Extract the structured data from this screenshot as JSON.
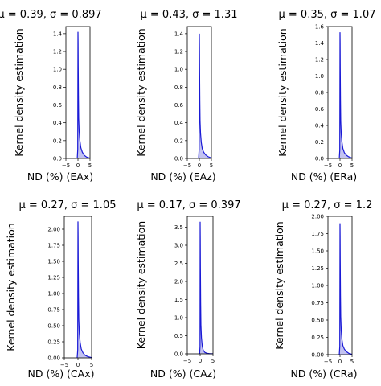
{
  "chart_data": [
    {
      "type": "area",
      "title": "μ = 0.39, σ = 0.897",
      "xlabel": "ND (%) (EAx)",
      "ylabel": "Kernel density estimation",
      "xlim": [
        -5,
        5
      ],
      "ylim": [
        0,
        1.48
      ],
      "xticks": [
        "−5",
        "0",
        "5"
      ],
      "yticks": [
        "0.0",
        "0.2",
        "0.4",
        "0.6",
        "0.8",
        "1.0",
        "1.2",
        "1.4"
      ],
      "ytick_values": [
        0,
        0.2,
        0.4,
        0.6,
        0.8,
        1.0,
        1.2,
        1.4
      ],
      "x": [
        -0.3,
        -0.1,
        0.0,
        0.05,
        0.1,
        0.2,
        0.3,
        0.5,
        0.8,
        1.2,
        1.8,
        2.6,
        3.6,
        5.0
      ],
      "y": [
        0.0,
        0.1,
        1.42,
        1.3,
        1.05,
        0.7,
        0.45,
        0.3,
        0.2,
        0.12,
        0.07,
        0.035,
        0.015,
        0.003
      ]
    },
    {
      "type": "area",
      "title": "μ = 0.43, σ = 1.31",
      "xlabel": "ND (%) (EAz)",
      "ylabel": "Kernel density estimation",
      "xlim": [
        -5,
        5
      ],
      "ylim": [
        0,
        1.48
      ],
      "xticks": [
        "−5",
        "0",
        "5"
      ],
      "yticks": [
        "0.0",
        "0.2",
        "0.4",
        "0.6",
        "0.8",
        "1.0",
        "1.2",
        "1.4"
      ],
      "ytick_values": [
        0,
        0.2,
        0.4,
        0.6,
        0.8,
        1.0,
        1.2,
        1.4
      ],
      "x": [
        -0.3,
        -0.1,
        0.0,
        0.05,
        0.1,
        0.2,
        0.3,
        0.5,
        0.8,
        1.2,
        1.8,
        2.6,
        3.6,
        5.0
      ],
      "y": [
        0.0,
        0.1,
        1.4,
        1.25,
        1.0,
        0.65,
        0.42,
        0.28,
        0.18,
        0.11,
        0.07,
        0.04,
        0.02,
        0.005
      ]
    },
    {
      "type": "area",
      "title": "μ = 0.35, σ = 1.07",
      "xlabel": "ND (%) (ERa)",
      "ylabel": "Kernel density estimation",
      "xlim": [
        -5,
        5
      ],
      "ylim": [
        0,
        1.6
      ],
      "xticks": [
        "−5",
        "0",
        "5"
      ],
      "yticks": [
        "0.0",
        "0.2",
        "0.4",
        "0.6",
        "0.8",
        "1.0",
        "1.2",
        "1.4",
        "1.6"
      ],
      "ytick_values": [
        0,
        0.2,
        0.4,
        0.6,
        0.8,
        1.0,
        1.2,
        1.4,
        1.6
      ],
      "x": [
        -0.3,
        -0.1,
        0.0,
        0.05,
        0.1,
        0.2,
        0.3,
        0.5,
        0.8,
        1.2,
        1.8,
        2.6,
        3.6,
        5.0
      ],
      "y": [
        0.0,
        0.1,
        1.53,
        1.4,
        1.1,
        0.7,
        0.45,
        0.3,
        0.2,
        0.12,
        0.07,
        0.04,
        0.02,
        0.004
      ]
    },
    {
      "type": "area",
      "title": "μ = 0.27, σ = 1.05",
      "xlabel": "ND (%) (CAx)",
      "ylabel": "Kernel density estimation",
      "xlim": [
        -5,
        5
      ],
      "ylim": [
        0,
        2.2
      ],
      "xticks": [
        "−5",
        "0",
        "5"
      ],
      "yticks": [
        "0.00",
        "0.25",
        "0.50",
        "0.75",
        "1.00",
        "1.25",
        "1.50",
        "1.75",
        "2.00"
      ],
      "ytick_values": [
        0,
        0.25,
        0.5,
        0.75,
        1.0,
        1.25,
        1.5,
        1.75,
        2.0
      ],
      "x": [
        -0.3,
        -0.1,
        0.0,
        0.05,
        0.1,
        0.2,
        0.3,
        0.5,
        0.8,
        1.2,
        1.8,
        2.6,
        3.6,
        5.0
      ],
      "y": [
        0.0,
        0.12,
        2.12,
        1.9,
        1.5,
        0.95,
        0.6,
        0.38,
        0.24,
        0.14,
        0.08,
        0.04,
        0.02,
        0.004
      ]
    },
    {
      "type": "area",
      "title": "μ = 0.17, σ = 0.397",
      "xlabel": "ND (%) (CAz)",
      "ylabel": "Kernel density estimation",
      "xlim": [
        -5,
        5
      ],
      "ylim": [
        0,
        3.8
      ],
      "xticks": [
        "−5",
        "0",
        "5"
      ],
      "yticks": [
        "0.0",
        "0.5",
        "1.0",
        "1.5",
        "2.0",
        "2.5",
        "3.0",
        "3.5"
      ],
      "ytick_values": [
        0,
        0.5,
        1.0,
        1.5,
        2.0,
        2.5,
        3.0,
        3.5
      ],
      "x": [
        -0.2,
        -0.05,
        0.0,
        0.05,
        0.1,
        0.2,
        0.3,
        0.5,
        0.8,
        1.2,
        1.8,
        2.6,
        3.6,
        5.0
      ],
      "y": [
        0.0,
        0.2,
        3.65,
        3.2,
        2.4,
        1.4,
        0.8,
        0.45,
        0.22,
        0.1,
        0.04,
        0.015,
        0.005,
        0.001
      ]
    },
    {
      "type": "area",
      "title": "μ = 0.27, σ = 1.2",
      "xlabel": "ND (%) (CRa)",
      "ylabel": "Kernel density estimation",
      "xlim": [
        -5,
        5
      ],
      "ylim": [
        0,
        2.0
      ],
      "xticks": [
        "−5",
        "0",
        "5"
      ],
      "yticks": [
        "0.00",
        "0.25",
        "0.50",
        "0.75",
        "1.00",
        "1.25",
        "1.50",
        "1.75",
        "2.00"
      ],
      "ytick_values": [
        0,
        0.25,
        0.5,
        0.75,
        1.0,
        1.25,
        1.5,
        1.75,
        2.0
      ],
      "x": [
        -0.3,
        -0.1,
        0.0,
        0.05,
        0.1,
        0.2,
        0.3,
        0.5,
        0.8,
        1.2,
        1.8,
        2.6,
        3.6,
        5.0
      ],
      "y": [
        0.0,
        0.12,
        1.9,
        1.7,
        1.35,
        0.85,
        0.55,
        0.35,
        0.22,
        0.13,
        0.08,
        0.045,
        0.02,
        0.005
      ]
    }
  ],
  "colors": {
    "line": "#1a1ad6",
    "fill": "#b8b8ef"
  }
}
